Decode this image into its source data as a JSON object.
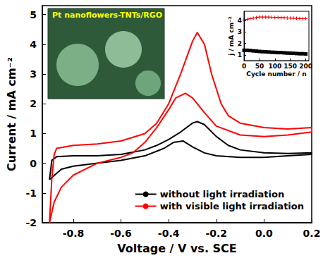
{
  "chart_data": [
    {
      "type": "line",
      "x_label": "Voltage / V vs. SCE",
      "y_label": "Current / mA cm⁻²",
      "annotation": "Pt nanoflowers-TNTs/RGO",
      "xlim": [
        -0.93,
        0.2
      ],
      "xticks": [
        -0.8,
        -0.6,
        -0.4,
        -0.2,
        {
          "value": 0,
          "label": "0.0"
        },
        0.2
      ],
      "ylim": [
        -2,
        5.3
      ],
      "yticks": [
        -2,
        -1,
        0,
        1,
        2,
        3,
        4,
        5
      ],
      "legend": "lower right",
      "grid": false,
      "series": [
        {
          "name": "without light irradiation",
          "color": "#000000",
          "x": [
            -0.9,
            -0.89,
            -0.87,
            -0.8,
            -0.7,
            -0.6,
            -0.5,
            -0.45,
            -0.4,
            -0.35,
            -0.3,
            -0.28,
            -0.25,
            -0.2,
            -0.15,
            -0.1,
            0,
            0.1,
            0.2,
            0.2,
            0.1,
            0,
            -0.1,
            -0.2,
            -0.25,
            -0.3,
            -0.34,
            -0.38,
            -0.42,
            -0.5,
            -0.6,
            -0.7,
            -0.8,
            -0.85,
            -0.9
          ],
          "values": [
            -0.55,
            0.1,
            0.22,
            0.25,
            0.25,
            0.3,
            0.45,
            0.6,
            0.8,
            1.05,
            1.35,
            1.4,
            1.3,
            0.9,
            0.6,
            0.45,
            0.35,
            0.33,
            0.35,
            0.3,
            0.25,
            0.2,
            0.2,
            0.25,
            0.35,
            0.55,
            0.75,
            0.7,
            0.5,
            0.25,
            0.1,
            0.0,
            -0.1,
            -0.2,
            -0.55
          ]
        },
        {
          "name": "with visible light irradiation",
          "color": "#ff0000",
          "x": [
            -0.9,
            -0.89,
            -0.88,
            -0.87,
            -0.8,
            -0.7,
            -0.6,
            -0.5,
            -0.45,
            -0.4,
            -0.35,
            -0.3,
            -0.28,
            -0.25,
            -0.22,
            -0.18,
            -0.15,
            -0.1,
            0,
            0.1,
            0.2,
            0.2,
            0.1,
            0,
            -0.1,
            -0.2,
            -0.25,
            -0.3,
            -0.33,
            -0.37,
            -0.4,
            -0.45,
            -0.5,
            -0.55,
            -0.6,
            -0.7,
            -0.8,
            -0.85,
            -0.88,
            -0.9
          ],
          "values": [
            -2.0,
            -0.5,
            0.3,
            0.5,
            0.6,
            0.65,
            0.75,
            1.0,
            1.35,
            2.0,
            3.0,
            4.1,
            4.4,
            4.0,
            3.0,
            2.0,
            1.6,
            1.35,
            1.2,
            1.15,
            1.2,
            1.05,
            0.95,
            0.9,
            0.95,
            1.25,
            1.7,
            2.2,
            2.35,
            2.2,
            1.8,
            1.2,
            0.7,
            0.35,
            0.2,
            0.0,
            -0.4,
            -0.8,
            -1.3,
            -2.0
          ]
        }
      ]
    },
    {
      "type": "line",
      "x_label": "Cycle number / n",
      "y_label": "j / mA cm⁻²",
      "xlim": [
        0,
        210
      ],
      "xticks": [
        0,
        50,
        100,
        150,
        200
      ],
      "ylim": [
        0.5,
        4.8
      ],
      "yticks": [
        1,
        2,
        3,
        4
      ],
      "grid": false,
      "x": [
        0,
        10,
        20,
        30,
        40,
        50,
        60,
        70,
        80,
        90,
        100,
        110,
        120,
        130,
        140,
        150,
        160,
        170,
        180,
        190,
        200
      ],
      "series": [
        {
          "color": "#ff0000",
          "marker": "cross",
          "values": [
            4.05,
            4.1,
            4.15,
            4.2,
            4.25,
            4.3,
            4.3,
            4.3,
            4.3,
            4.28,
            4.27,
            4.26,
            4.25,
            4.24,
            4.22,
            4.2,
            4.2,
            4.18,
            4.17,
            4.15,
            4.15
          ]
        },
        {
          "color": "#000000",
          "marker": "square",
          "values": [
            1.4,
            1.4,
            1.38,
            1.35,
            1.33,
            1.3,
            1.28,
            1.27,
            1.25,
            1.23,
            1.22,
            1.2,
            1.2,
            1.18,
            1.16,
            1.15,
            1.14,
            1.12,
            1.1,
            1.1,
            1.08
          ]
        }
      ]
    }
  ]
}
